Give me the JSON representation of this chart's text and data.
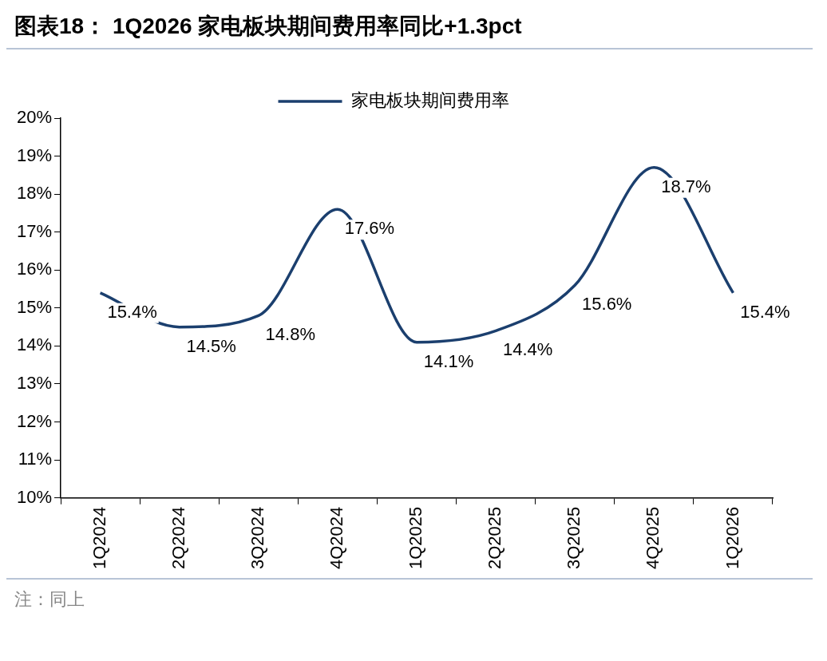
{
  "chart_data": {
    "type": "line",
    "title": "图表18：  1Q2026 家电板块期间费用率同比+1.3pct",
    "categories": [
      "1Q2024",
      "2Q2024",
      "3Q2024",
      "4Q2024",
      "1Q2025",
      "2Q2025",
      "3Q2025",
      "4Q2025",
      "1Q2026"
    ],
    "series": [
      {
        "name": "家电板块期间费用率",
        "color": "#1b3f6e",
        "values": [
          15.4,
          14.5,
          14.8,
          17.6,
          14.1,
          14.4,
          15.6,
          18.7,
          15.4
        ],
        "value_labels": [
          "15.4%",
          "14.5%",
          "14.8%",
          "17.6%",
          "14.1%",
          "14.4%",
          "15.6%",
          "18.7%",
          "15.4%"
        ]
      }
    ],
    "ylim": [
      10,
      20
    ],
    "yticks": [
      {
        "value": 10,
        "label": "10%"
      },
      {
        "value": 11,
        "label": "11%"
      },
      {
        "value": 12,
        "label": "12%"
      },
      {
        "value": 13,
        "label": "13%"
      },
      {
        "value": 14,
        "label": "14%"
      },
      {
        "value": 15,
        "label": "15%"
      },
      {
        "value": 16,
        "label": "16%"
      },
      {
        "value": 17,
        "label": "17%"
      },
      {
        "value": 18,
        "label": "18%"
      },
      {
        "value": 19,
        "label": "19%"
      },
      {
        "value": 20,
        "label": "20%"
      }
    ],
    "grid": false,
    "legend": "top",
    "marker": "none",
    "line_style": "solid",
    "annotations": [
      "注：同上"
    ]
  }
}
